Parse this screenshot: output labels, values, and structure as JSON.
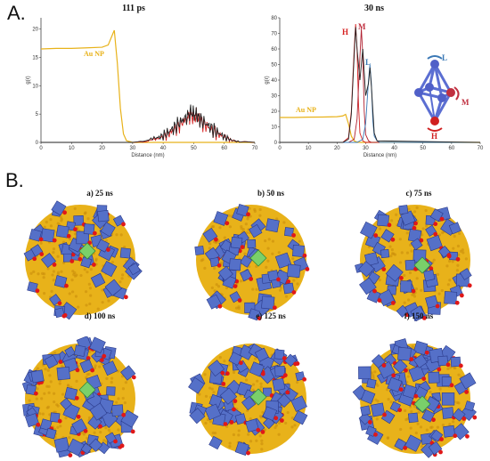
{
  "panels": {
    "a": "A.",
    "b": "B."
  },
  "chart_data": [
    {
      "type": "line",
      "title": "111 ps",
      "xlabel": "Distance (nm)",
      "ylabel": "g(r)",
      "xlim": [
        0,
        70
      ],
      "ylim": [
        0,
        22
      ],
      "xticks": [
        "0",
        "10",
        "20",
        "30",
        "40",
        "50",
        "60",
        "70"
      ],
      "yticks": [
        "0",
        "5",
        "10",
        "15",
        "20"
      ],
      "grid": false,
      "series": [
        {
          "name": "Au NP",
          "color": "#e8b21a",
          "x": [
            0,
            5,
            10,
            15,
            20,
            22,
            23,
            24,
            25,
            26,
            27,
            28,
            30,
            35,
            40,
            50,
            60,
            70
          ],
          "y": [
            16.5,
            16.6,
            16.6,
            16.7,
            16.8,
            17.2,
            18.5,
            19.8,
            14,
            6,
            1.5,
            0.3,
            0,
            0,
            0,
            0,
            0,
            0
          ]
        },
        {
          "color": "#d62020",
          "x": [
            0,
            25,
            30,
            35,
            38,
            40,
            42,
            44,
            46,
            48,
            49,
            50,
            51,
            52,
            54,
            56,
            58,
            60,
            62,
            65,
            70
          ],
          "y": [
            0,
            0,
            0,
            0.2,
            0.6,
            1.0,
            1.6,
            2.4,
            3.4,
            4.2,
            4.9,
            4.4,
            4.6,
            3.8,
            3.0,
            2.2,
            1.5,
            0.9,
            0.5,
            0.2,
            0
          ]
        },
        {
          "color": "#222222",
          "x": [
            0,
            25,
            30,
            35,
            38,
            40,
            42,
            44,
            46,
            48,
            49,
            50,
            51,
            52,
            54,
            56,
            58,
            60,
            62,
            65,
            70
          ],
          "y": [
            0,
            0,
            0,
            0.3,
            0.8,
            1.2,
            1.9,
            2.8,
            3.8,
            4.6,
            5.4,
            5.0,
            4.9,
            4.1,
            3.3,
            2.5,
            1.7,
            1.0,
            0.5,
            0.2,
            0
          ]
        }
      ],
      "annotations": [
        "Au NP"
      ]
    },
    {
      "type": "line",
      "title": "30 ns",
      "xlabel": "Distance (nm)",
      "ylabel": "g(r)",
      "xlim": [
        0,
        70
      ],
      "ylim": [
        0,
        80
      ],
      "xticks": [
        "0",
        "10",
        "20",
        "30",
        "40",
        "50",
        "60",
        "70"
      ],
      "yticks": [
        "0",
        "10",
        "20",
        "30",
        "40",
        "50",
        "60",
        "70",
        "80"
      ],
      "grid": false,
      "series": [
        {
          "name": "Au NP",
          "color": "#e8b21a",
          "x": [
            0,
            5,
            10,
            15,
            20,
            22,
            23,
            24,
            25,
            26,
            27,
            28,
            30,
            40,
            70
          ],
          "y": [
            16,
            16,
            16.2,
            16.3,
            16.5,
            17,
            18,
            12,
            4,
            1,
            0.2,
            0,
            0,
            0,
            0
          ]
        },
        {
          "name": "H",
          "color": "#d62020",
          "x": [
            0,
            22,
            24,
            25,
            26,
            26.5,
            27,
            27.5,
            28,
            29,
            30,
            70
          ],
          "y": [
            0,
            0,
            3,
            20,
            60,
            76,
            60,
            25,
            6,
            1,
            0,
            0
          ]
        },
        {
          "name": "M",
          "color": "#b02030",
          "x": [
            0,
            24,
            26,
            27,
            28,
            28.5,
            29,
            29.5,
            30,
            31,
            32,
            70
          ],
          "y": [
            0,
            0,
            2,
            15,
            55,
            73,
            56,
            20,
            5,
            1,
            0,
            0
          ]
        },
        {
          "name": "L",
          "color": "#3a78b5",
          "x": [
            0,
            27,
            29,
            30,
            31,
            31.5,
            32,
            32.5,
            33,
            34,
            35,
            70
          ],
          "y": [
            0,
            0,
            2,
            12,
            40,
            50,
            38,
            14,
            4,
            1,
            0,
            0
          ]
        },
        {
          "color": "#222222",
          "x": [
            0,
            22,
            24,
            25,
            26,
            26.5,
            27,
            28,
            29,
            30,
            31,
            31.5,
            32,
            33,
            34,
            70
          ],
          "y": [
            0,
            0,
            2,
            18,
            56,
            74,
            60,
            40,
            60,
            30,
            38,
            48,
            36,
            6,
            1,
            0
          ]
        }
      ],
      "annotations": [
        "Au NP",
        "H",
        "M",
        "L"
      ]
    }
  ],
  "inset": {
    "label_top": "L",
    "label_right": "M",
    "label_bottom": "H"
  },
  "snapshots": [
    {
      "caption": "a) 25 ns",
      "coverage": 0.35,
      "seed": 11
    },
    {
      "caption": "b) 50 ns",
      "coverage": 0.45,
      "seed": 23
    },
    {
      "caption": "c) 75 ns",
      "coverage": 0.55,
      "seed": 37
    },
    {
      "caption": "d) 100 ns",
      "coverage": 0.75,
      "seed": 41
    },
    {
      "caption": "e) 125 ns",
      "coverage": 0.8,
      "seed": 53
    },
    {
      "caption": "f) 150 ns",
      "coverage": 0.88,
      "seed": 67
    }
  ],
  "colors": {
    "gold": "#e8b21a",
    "blue": "#5570c8",
    "red": "#e01818",
    "green": "#7ad06a"
  }
}
